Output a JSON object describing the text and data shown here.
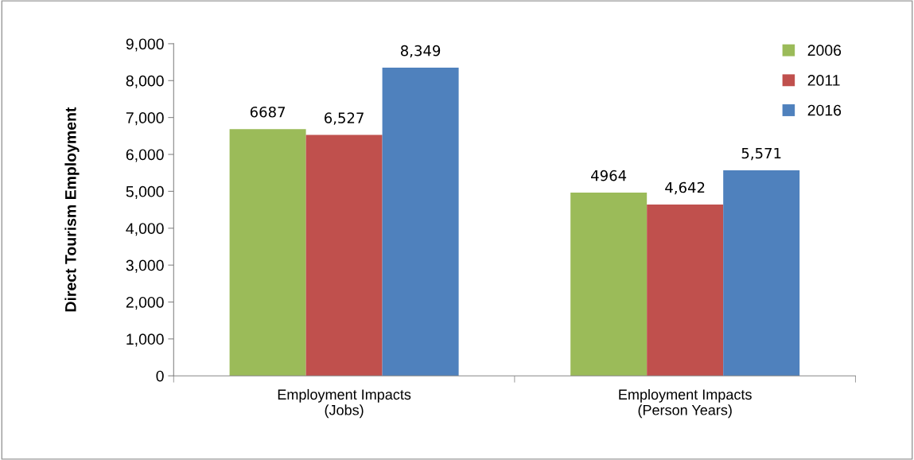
{
  "chart_data": {
    "type": "bar",
    "ylabel": "Direct Tourism Employment",
    "categories": [
      "Employment Impacts\n(Jobs)",
      "Employment Impacts\n(Person Years)"
    ],
    "series": [
      {
        "name": "2006",
        "color": "#9bbb59",
        "values": [
          6687,
          4964
        ],
        "value_labels": [
          "6687",
          "4964"
        ]
      },
      {
        "name": "2011",
        "color": "#c0504d",
        "values": [
          6527,
          4642
        ],
        "value_labels": [
          "6,527",
          "4,642"
        ]
      },
      {
        "name": "2016",
        "color": "#4f81bd",
        "values": [
          8349,
          5571
        ],
        "value_labels": [
          "8,349",
          "5,571"
        ]
      }
    ],
    "ylim": [
      0,
      9000
    ],
    "yticks": [
      {
        "value": 0,
        "label": "0"
      },
      {
        "value": 1000,
        "label": "1,000"
      },
      {
        "value": 2000,
        "label": "2,000"
      },
      {
        "value": 3000,
        "label": "3,000"
      },
      {
        "value": 4000,
        "label": "4,000"
      },
      {
        "value": 5000,
        "label": "5,000"
      },
      {
        "value": 6000,
        "label": "6,000"
      },
      {
        "value": 7000,
        "label": "7,000"
      },
      {
        "value": 8000,
        "label": "8,000"
      },
      {
        "value": 9000,
        "label": "9,000"
      }
    ],
    "grid": false,
    "legend": "top right"
  }
}
